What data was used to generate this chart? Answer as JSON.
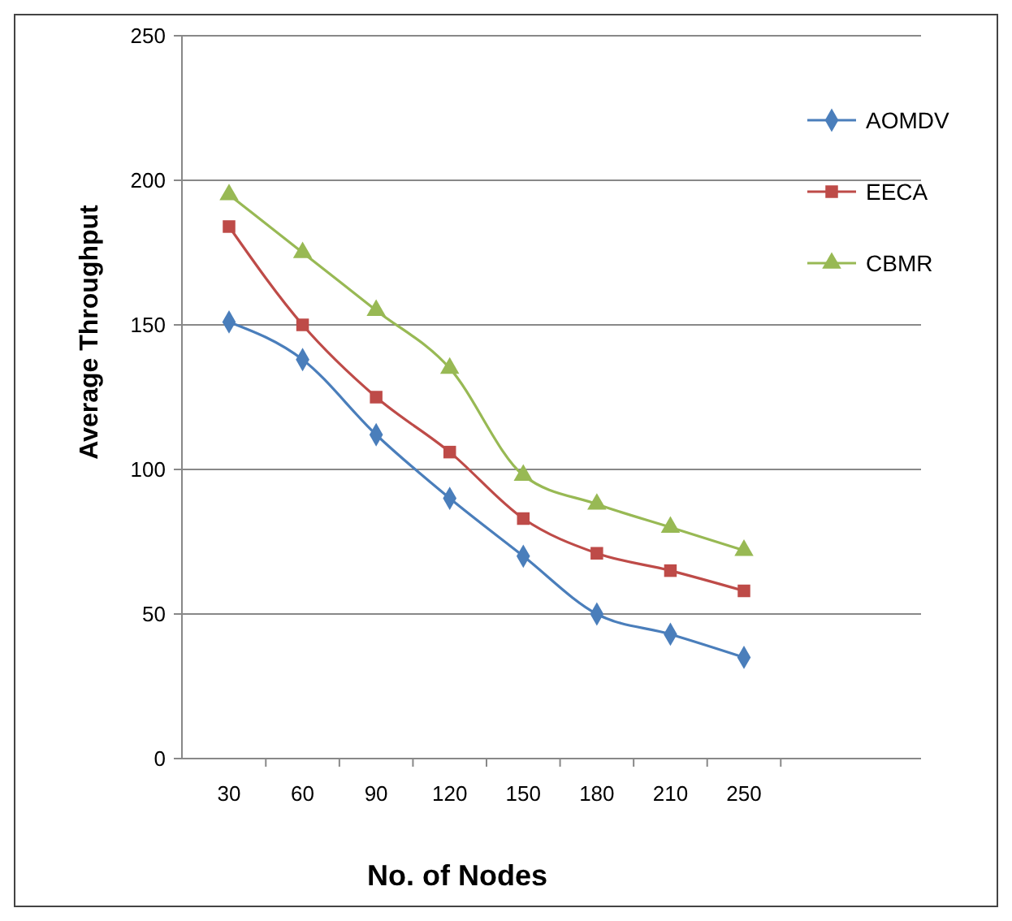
{
  "chart_data": {
    "type": "line",
    "xlabel": "No. of Nodes",
    "ylabel": "Average Throughput",
    "categories": [
      "30",
      "60",
      "90",
      "120",
      "150",
      "180",
      "210",
      "250"
    ],
    "series": [
      {
        "name": "AOMDV",
        "color": "#4a7ebb",
        "marker": "diamond",
        "values": [
          151,
          138,
          112,
          90,
          70,
          50,
          43,
          35
        ]
      },
      {
        "name": "EECA",
        "color": "#be4b48",
        "marker": "square",
        "values": [
          184,
          150,
          125,
          106,
          83,
          71,
          65,
          58
        ]
      },
      {
        "name": "CBMR",
        "color": "#98b954",
        "marker": "triangle",
        "values": [
          195,
          175,
          155,
          135,
          98,
          88,
          80,
          72
        ]
      }
    ],
    "ylim": [
      0,
      250
    ],
    "yticks": [
      0,
      50,
      100,
      150,
      200,
      250
    ],
    "grid": "y",
    "legend": "right"
  }
}
